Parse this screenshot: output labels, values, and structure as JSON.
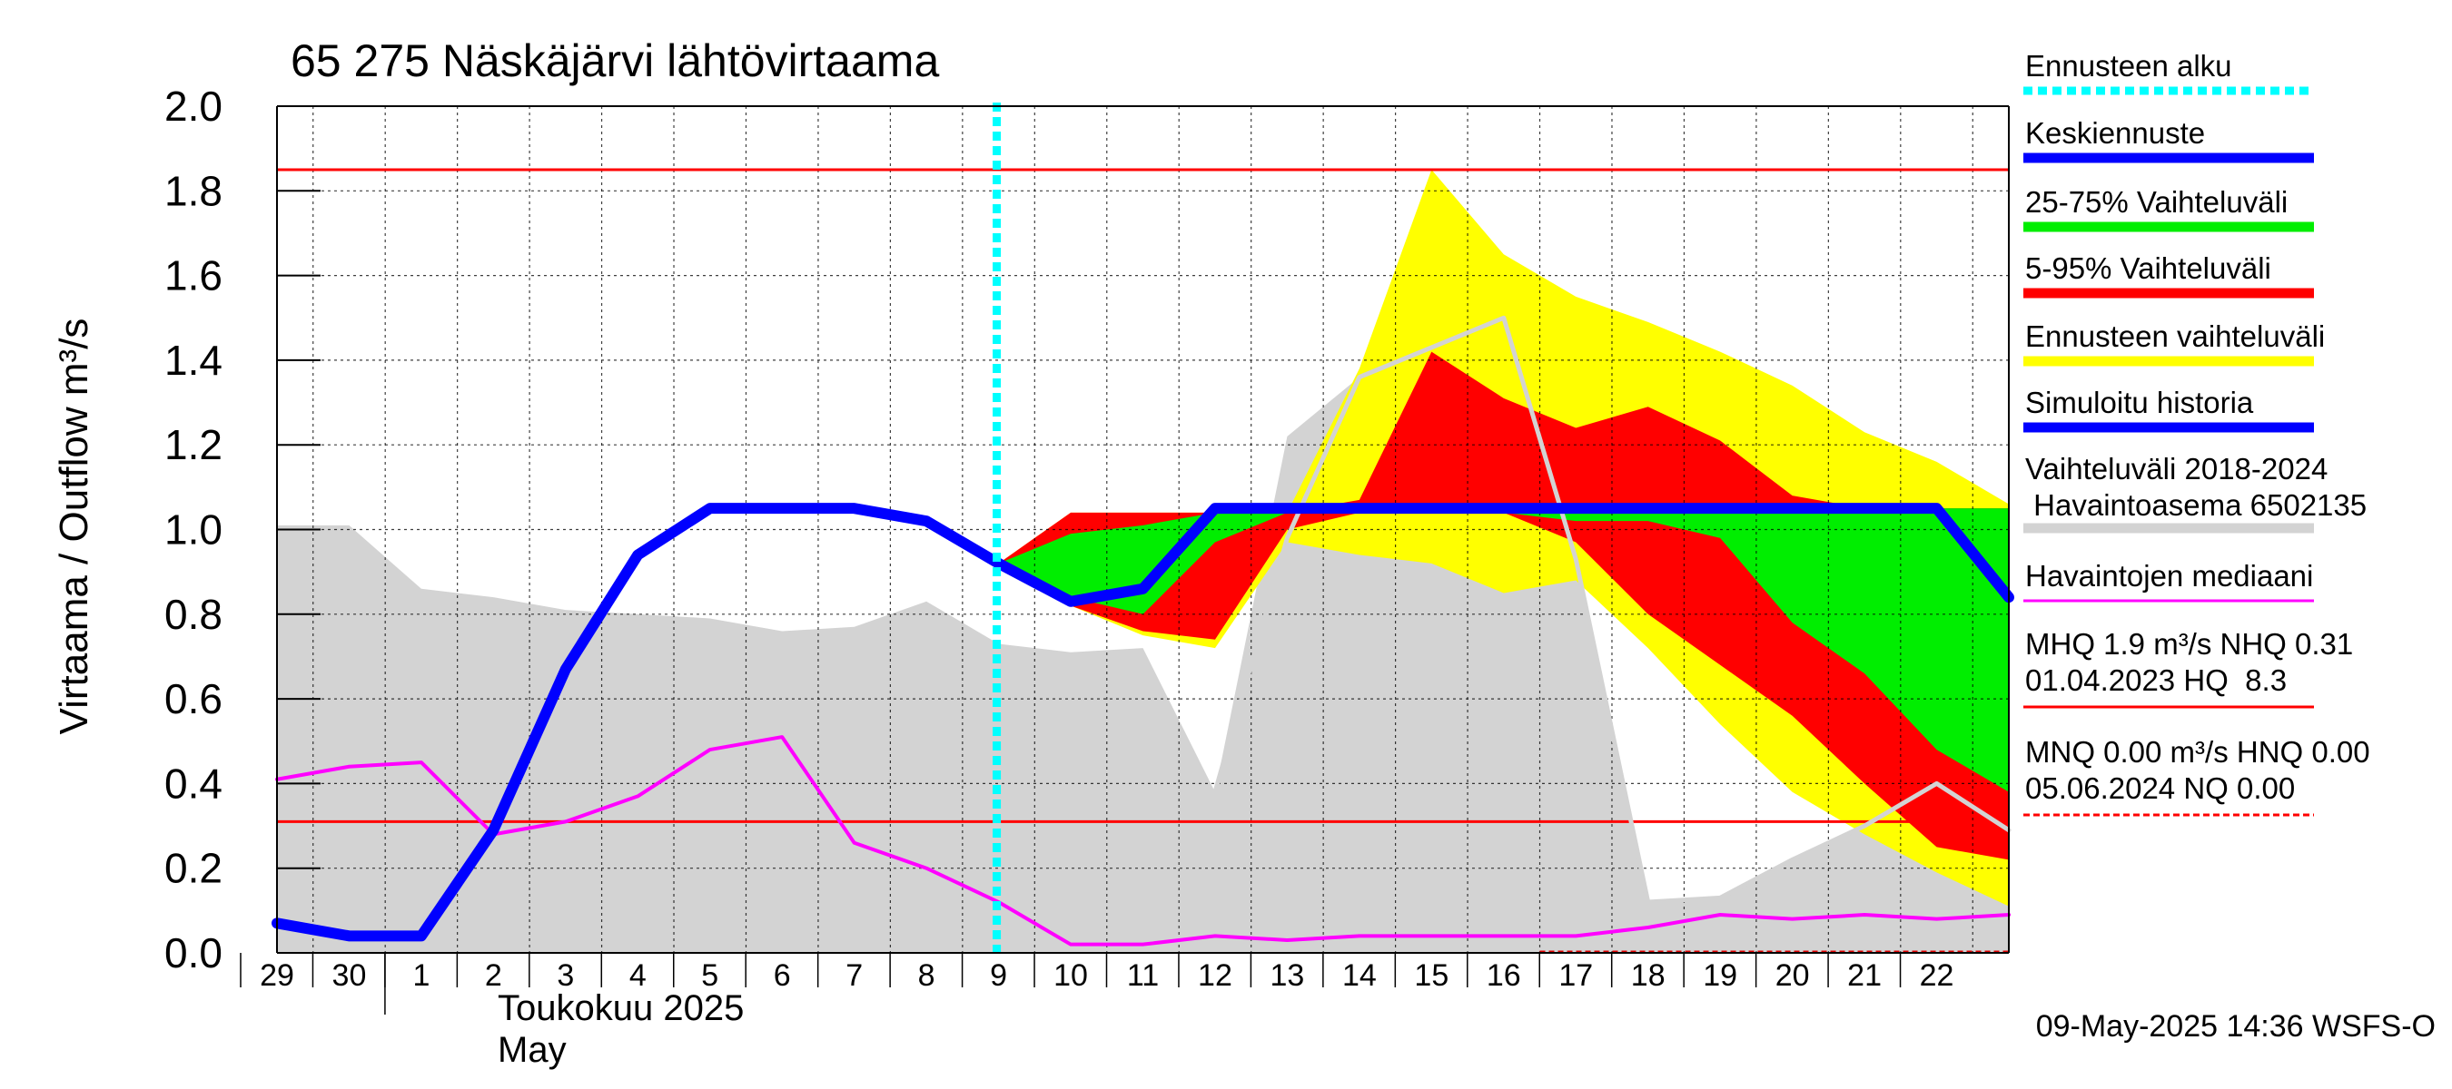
{
  "chart_data": {
    "type": "area",
    "title": "65 275 Näskäjärvi lähtövirtaama",
    "ylabel": "Virtaama / Outflow    m³/s",
    "ylim": [
      0,
      2.0
    ],
    "yticks": [
      0.0,
      0.2,
      0.4,
      0.6,
      0.8,
      1.0,
      1.2,
      1.4,
      1.6,
      1.8,
      2.0
    ],
    "ytick_labels": [
      "0.0",
      "0.2",
      "0.4",
      "0.6",
      "0.8",
      "1.0",
      "1.2",
      "1.4",
      "1.6",
      "1.8",
      "2.0"
    ],
    "x_start": -1,
    "x_end": 23,
    "day_labels": [
      {
        "x": -1,
        "label": "29"
      },
      {
        "x": 0,
        "label": "30"
      },
      {
        "x": 1,
        "label": "1"
      },
      {
        "x": 2,
        "label": "2"
      },
      {
        "x": 3,
        "label": "3"
      },
      {
        "x": 4,
        "label": "4"
      },
      {
        "x": 5,
        "label": "5"
      },
      {
        "x": 6,
        "label": "6"
      },
      {
        "x": 7,
        "label": "7"
      },
      {
        "x": 8,
        "label": "8"
      },
      {
        "x": 9,
        "label": "9"
      },
      {
        "x": 10,
        "label": "10"
      },
      {
        "x": 11,
        "label": "11"
      },
      {
        "x": 12,
        "label": "12"
      },
      {
        "x": 13,
        "label": "13"
      },
      {
        "x": 14,
        "label": "14"
      },
      {
        "x": 15,
        "label": "15"
      },
      {
        "x": 16,
        "label": "16"
      },
      {
        "x": 17,
        "label": "17"
      },
      {
        "x": 18,
        "label": "18"
      },
      {
        "x": 19,
        "label": "19"
      },
      {
        "x": 20,
        "label": "20"
      },
      {
        "x": 21,
        "label": "21"
      },
      {
        "x": 22,
        "label": "22"
      }
    ],
    "month_label_fi": "Toukokuu  2025",
    "month_label_en": "May",
    "forecast_start_x": 9,
    "hlines": [
      {
        "name": "MHQ",
        "value": 1.85,
        "color": "#ff0000"
      },
      {
        "name": "NHQ",
        "value": 0.31,
        "color": "#ff0000"
      }
    ],
    "history_range": {
      "name": "Vaihteluväli 2018-2024",
      "color": "#d3d3d3",
      "x": [
        -1,
        0,
        1,
        2,
        3,
        4,
        5,
        6,
        7,
        8,
        9,
        10,
        11,
        12,
        13,
        14,
        15,
        16,
        17,
        18,
        19,
        20,
        21,
        22,
        23
      ],
      "upper": [
        1.01,
        1.01,
        0.86,
        0.84,
        0.81,
        0.8,
        0.79,
        0.76,
        0.77,
        0.83,
        0.73,
        0.71,
        0.72,
        0.38,
        1.22,
        1.36,
        1.43,
        1.5,
        0.93,
        0.12,
        0.13,
        0.22,
        0.3,
        0.35,
        0.28
      ],
      "lower": [
        0,
        0,
        0,
        0,
        0,
        0,
        0,
        0,
        0,
        0,
        0,
        0,
        0,
        0,
        0,
        0,
        0,
        0,
        0,
        0,
        0,
        0,
        0,
        0,
        0
      ]
    },
    "forecast_range": {
      "name": "Ennusteen vaihteluväli",
      "color": "#ffff00",
      "x": [
        9,
        10,
        11,
        12,
        13,
        14,
        15,
        16,
        17,
        18,
        19,
        20,
        21,
        22,
        23
      ],
      "upper": [
        0.92,
        1.04,
        1.04,
        1.04,
        1.04,
        1.38,
        1.85,
        1.65,
        1.55,
        1.49,
        1.42,
        1.34,
        1.23,
        1.16,
        1.06
      ],
      "lower": [
        0.92,
        0.82,
        0.75,
        0.72,
        0.97,
        0.94,
        0.92,
        0.85,
        0.88,
        0.72,
        0.54,
        0.38,
        0.28,
        0.19,
        0.11
      ]
    },
    "p5_95": {
      "name": "5-95% Vaihteluväli",
      "color": "#ff0000",
      "x": [
        9,
        10,
        11,
        12,
        13,
        14,
        15,
        16,
        17,
        18,
        19,
        20,
        21,
        22,
        23
      ],
      "upper": [
        0.92,
        1.04,
        1.04,
        1.04,
        1.04,
        1.07,
        1.42,
        1.31,
        1.24,
        1.29,
        1.21,
        1.08,
        1.05,
        1.05,
        1.05
      ],
      "lower": [
        0.92,
        0.82,
        0.76,
        0.74,
        1.0,
        1.04,
        1.04,
        1.04,
        0.97,
        0.8,
        0.68,
        0.56,
        0.4,
        0.25,
        0.22
      ]
    },
    "p25_75": {
      "name": "25-75% Vaihteluväli",
      "color": "#00ee00",
      "x": [
        9,
        10,
        11,
        12,
        13,
        14,
        15,
        16,
        17,
        18,
        19,
        20,
        21,
        22,
        23
      ],
      "upper": [
        0.92,
        0.99,
        1.01,
        1.04,
        1.04,
        1.04,
        1.04,
        1.04,
        1.04,
        1.04,
        1.04,
        1.04,
        1.04,
        1.05,
        1.05
      ],
      "lower": [
        0.92,
        0.84,
        0.8,
        0.97,
        1.04,
        1.04,
        1.04,
        1.04,
        1.02,
        1.02,
        0.98,
        0.78,
        0.66,
        0.48,
        0.38
      ]
    },
    "observed_year": {
      "name": "Havaintoasema 6502135",
      "color": "#d3d3d3",
      "x": [
        12,
        13,
        14,
        15,
        16,
        17,
        18,
        19,
        20,
        21,
        22,
        23
      ],
      "y": [
        0.38,
        0.98,
        1.36,
        1.43,
        1.5,
        0.93,
        0.12,
        0.13,
        0.22,
        0.3,
        0.4,
        0.29
      ]
    },
    "median": {
      "name": "Havaintojen mediaani",
      "color": "#ff00ff",
      "x": [
        -1,
        0,
        1,
        2,
        3,
        4,
        5,
        6,
        7,
        8,
        9,
        10,
        11,
        12,
        13,
        14,
        15,
        16,
        17,
        18,
        19,
        20,
        21,
        22,
        23
      ],
      "y": [
        0.41,
        0.44,
        0.45,
        0.28,
        0.31,
        0.37,
        0.48,
        0.51,
        0.26,
        0.2,
        0.12,
        0.02,
        0.02,
        0.04,
        0.03,
        0.04,
        0.04,
        0.04,
        0.04,
        0.06,
        0.09,
        0.08,
        0.09,
        0.08,
        0.09
      ]
    },
    "simulated": {
      "name": "Simuloitu historia",
      "color": "#0000ff",
      "x": [
        -1,
        0,
        1,
        2,
        3,
        4,
        5,
        6,
        7,
        8,
        9
      ],
      "y": [
        0.07,
        0.04,
        0.04,
        0.29,
        0.67,
        0.94,
        1.05,
        1.05,
        1.05,
        1.02,
        0.92
      ]
    },
    "forecast_mean": {
      "name": "Keskiennuste",
      "color": "#0000ff",
      "x": [
        9,
        10,
        11,
        12,
        13,
        14,
        15,
        16,
        17,
        18,
        19,
        20,
        21,
        22,
        23
      ],
      "y": [
        0.92,
        0.83,
        0.86,
        1.05,
        1.05,
        1.05,
        1.05,
        1.05,
        1.05,
        1.05,
        1.05,
        1.05,
        1.05,
        1.05,
        0.84
      ]
    },
    "nq_line": {
      "name": "NQ",
      "value": 0.0,
      "x_from": 16.5,
      "color": "#dd0000"
    },
    "legend": [
      {
        "id": "forecast-start",
        "label": "Ennusteen alku",
        "color": "#00ffff",
        "style": "dotted"
      },
      {
        "id": "mean-forecast",
        "label": "Keskiennuste",
        "color": "#0000ff",
        "style": "solid"
      },
      {
        "id": "p25-75",
        "label": "25-75% Vaihteluväli",
        "color": "#00ee00",
        "style": "solid"
      },
      {
        "id": "p5-95",
        "label": "5-95% Vaihteluväli",
        "color": "#ff0000",
        "style": "solid"
      },
      {
        "id": "forecast-range",
        "label": "Ennusteen vaihteluväli",
        "color": "#ffff00",
        "style": "solid"
      },
      {
        "id": "simulated-history",
        "label": "Simuloitu historia",
        "color": "#0000ff",
        "style": "solid"
      },
      {
        "id": "history-range",
        "label": "Vaihteluväli 2018-2024",
        "label2": " Havaintoasema 6502135",
        "color": "#d3d3d3",
        "style": "solid"
      },
      {
        "id": "median",
        "label": "Havaintojen mediaani",
        "color": "#ff00ff",
        "style": "thin"
      },
      {
        "id": "mhq",
        "label": "MHQ  1.9 m³/s NHQ 0.31",
        "label2": "01.04.2023 HQ  8.3",
        "color": "#ff0000",
        "style": "thin"
      },
      {
        "id": "mnq",
        "label": "MNQ 0.00 m³/s HNQ 0.00",
        "label2": "05.06.2024 NQ 0.00",
        "color": "#ff0000",
        "style": "dashed"
      }
    ],
    "timestamp": "09-May-2025 14:36 WSFS-O"
  }
}
